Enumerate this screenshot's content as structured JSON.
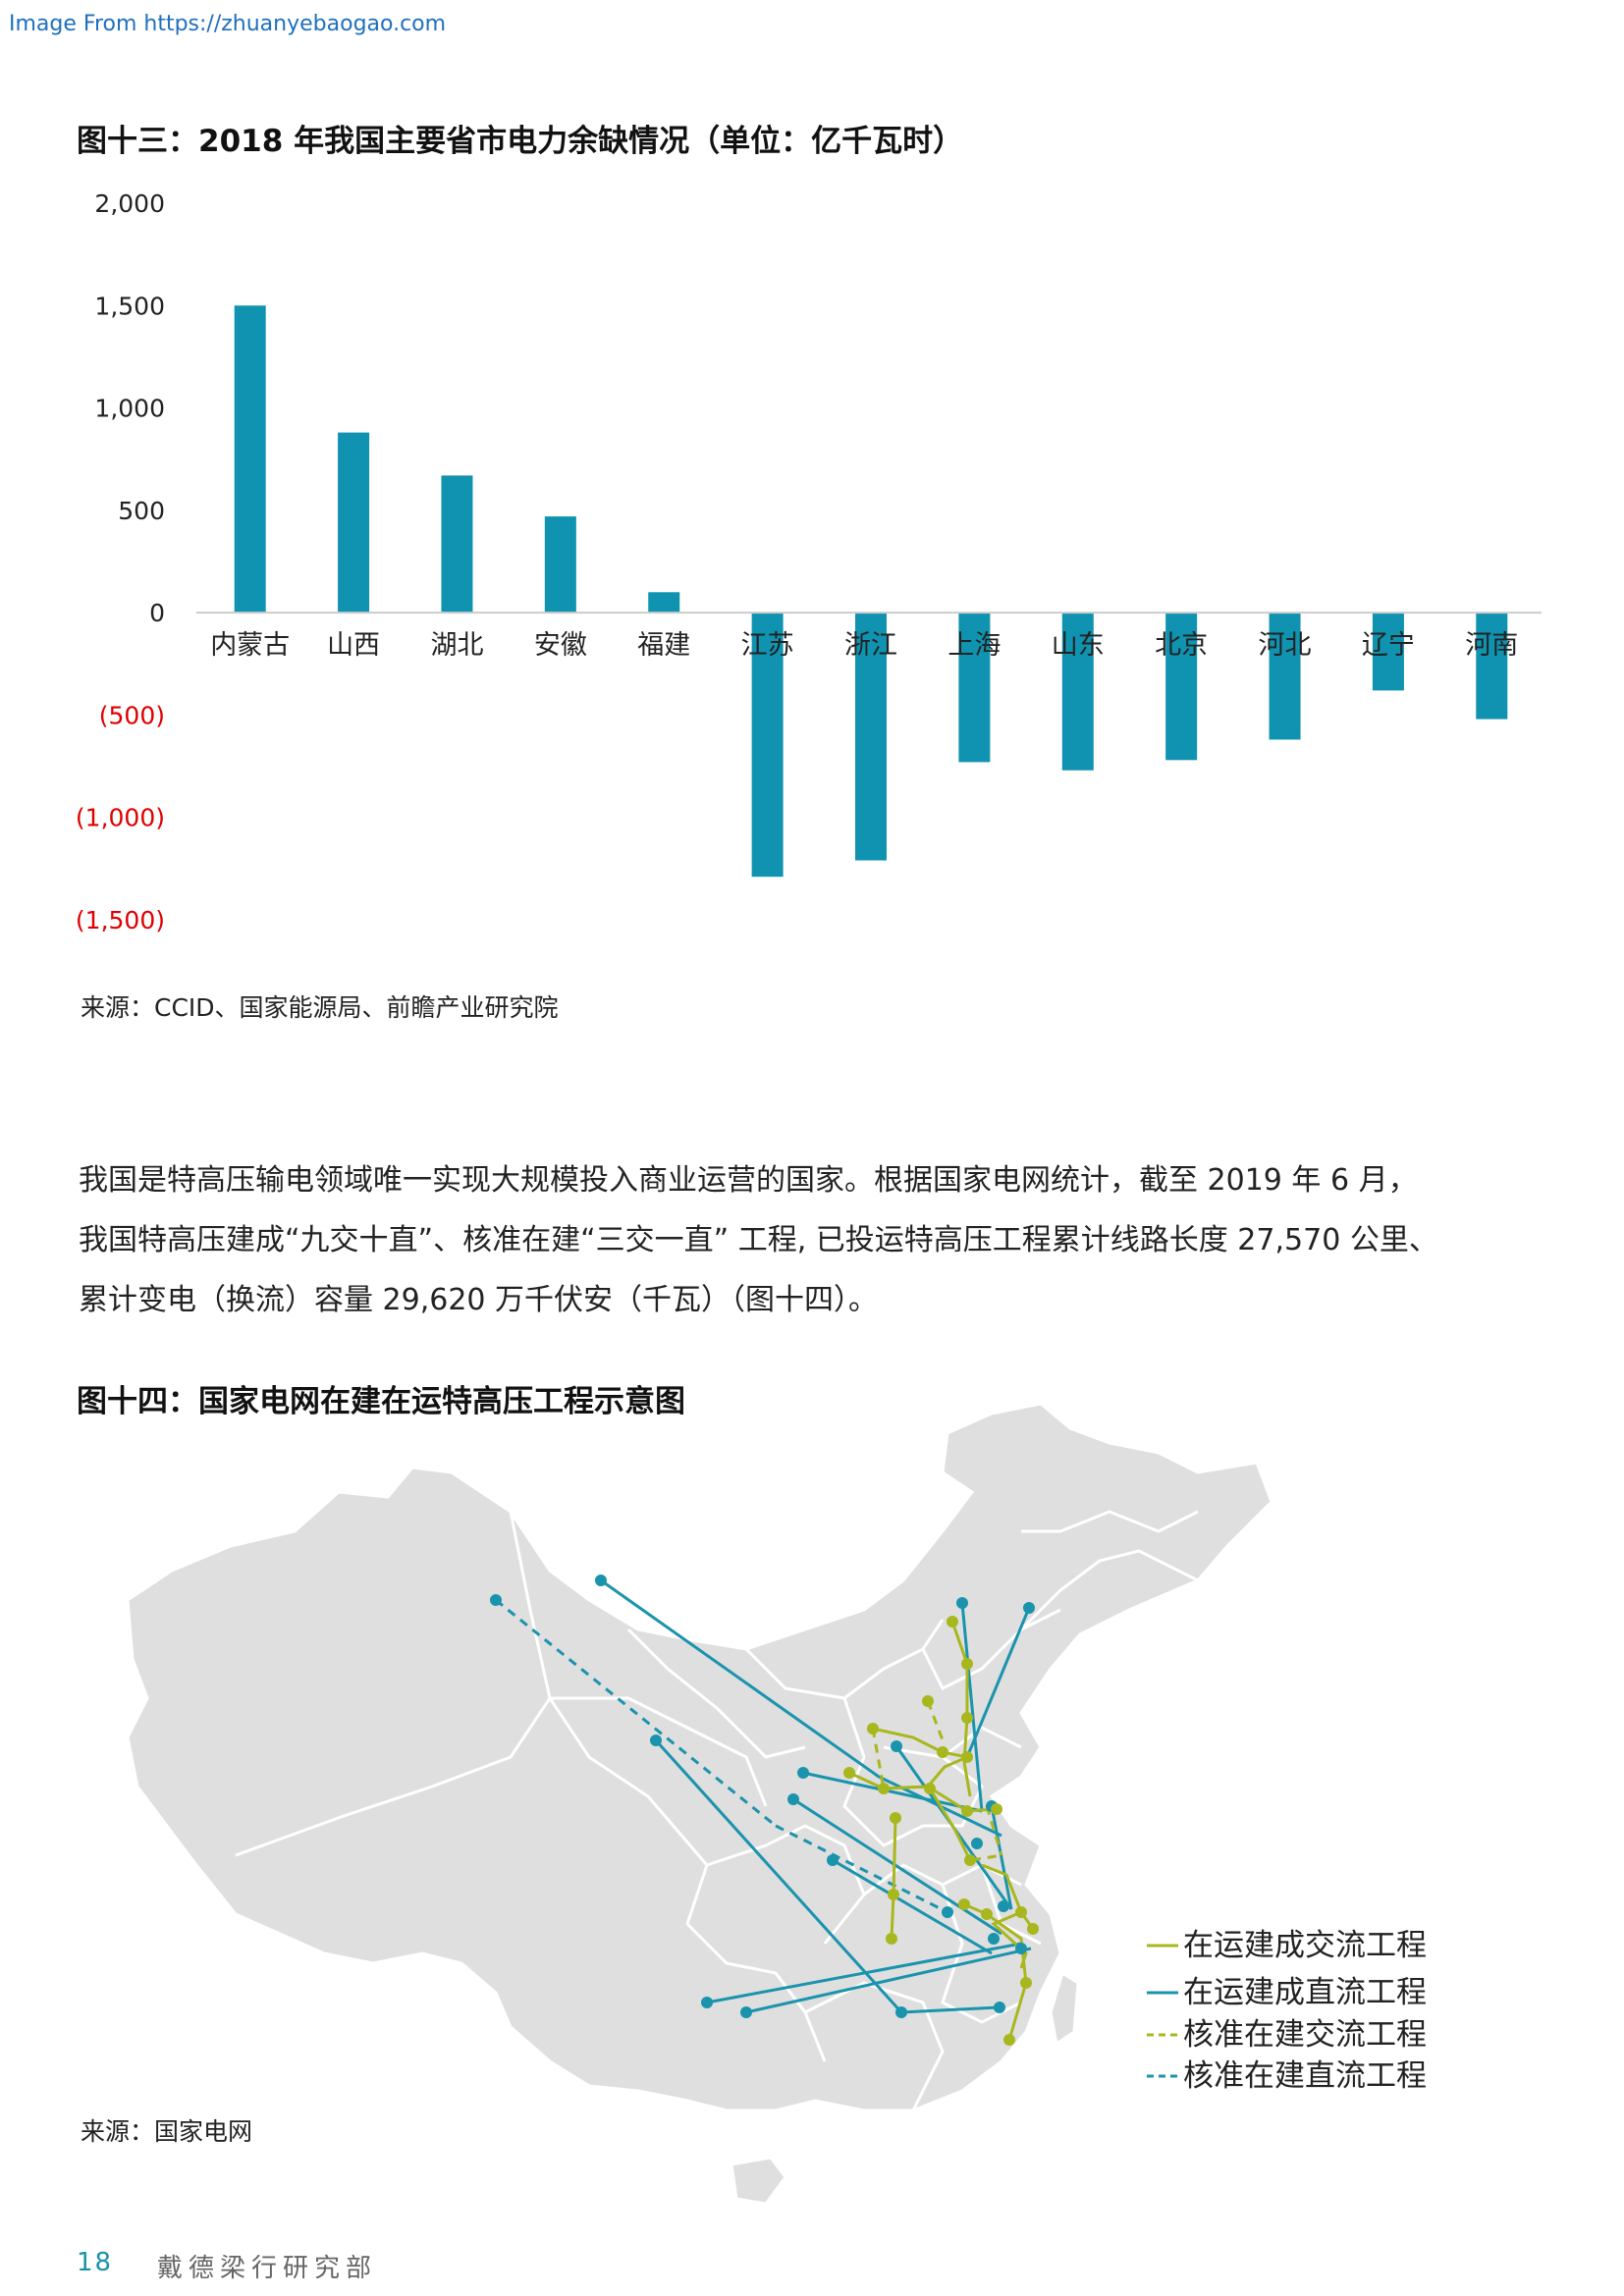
{
  "watermark": "Image From https://zhuanyebaogao.com",
  "figure13": {
    "title": "图十三：2018 年我国主要省市电力余缺情况（单位：亿千瓦时）",
    "source": "来源：CCID、国家能源局、前瞻产业研究院"
  },
  "chart_data": {
    "type": "bar",
    "categories": [
      "内蒙古",
      "山西",
      "湖北",
      "安徽",
      "福建",
      "江苏",
      "浙江",
      "上海",
      "山东",
      "北京",
      "河北",
      "辽宁",
      "河南"
    ],
    "values": [
      1500,
      880,
      670,
      470,
      100,
      -1290,
      -1210,
      -730,
      -770,
      -720,
      -620,
      -380,
      -520
    ],
    "ylim": [
      -1500,
      2000
    ],
    "yticks": [
      2000,
      1500,
      1000,
      500,
      0,
      -500,
      -1000,
      -1500
    ],
    "ytick_labels": [
      "2,000",
      "1,500",
      "1,000",
      "500",
      "0",
      "(500)",
      "(1,000)",
      "(1,500)"
    ],
    "grid": false,
    "colors": {
      "bar": "#0f93b0",
      "negative_label": "#e00000",
      "axis": "#cccccc"
    }
  },
  "paragraph": [
    "我国是特高压输电领域唯一实现大规模投入商业运营的国家。根据国家电网统计，截至 2019 年 6 月，",
    "我国特高压建成“九交十直”、核准在建“三交一直” 工程, 已投运特高压工程累计线路长度 27,570 公里、",
    "累计变电（换流）容量 29,620 万千伏安（千瓦）（图十四）。"
  ],
  "figure14": {
    "title": "图十四：国家电网在建在运特高压工程示意图",
    "source": "来源：国家电网",
    "legend": [
      {
        "label": "在运建成交流工程",
        "style": "solid",
        "color": "#a8b71e"
      },
      {
        "label": "在运建成直流工程",
        "style": "solid",
        "color": "#1a93ad"
      },
      {
        "label": "核准在建交流工程",
        "style": "dashed",
        "color": "#a8b71e"
      },
      {
        "label": "核准在建直流工程",
        "style": "dashed",
        "color": "#1a93ad"
      }
    ],
    "colors": {
      "land": "#dfdfdf",
      "border": "#ffffff"
    }
  },
  "footer": {
    "page": "18",
    "org": "戴德梁行研究部"
  }
}
